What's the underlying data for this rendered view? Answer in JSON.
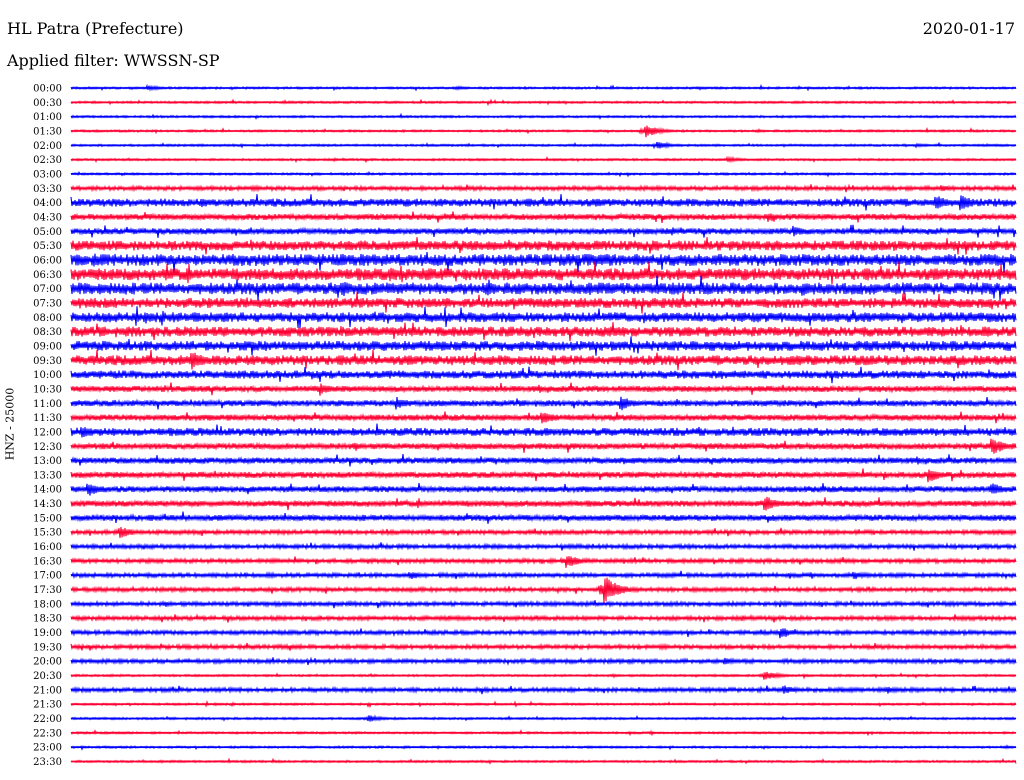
{
  "header": {
    "station": "HL Patra (Prefecture)",
    "date": "2020-01-17",
    "filter": "Applied filter: WWSSN-SP"
  },
  "colors": {
    "even_trace": "#0000ff",
    "odd_trace": "#ff0033"
  },
  "chart_data": {
    "type": "line",
    "title": "HL Patra (Prefecture)",
    "ylabel": "HNZ - 25000",
    "y_tick_labels": [
      "00:00",
      "00:30",
      "01:00",
      "01:30",
      "02:00",
      "02:30",
      "03:00",
      "03:30",
      "04:00",
      "04:30",
      "05:00",
      "05:30",
      "06:00",
      "06:30",
      "07:00",
      "07:30",
      "08:00",
      "08:30",
      "09:00",
      "09:30",
      "10:00",
      "10:30",
      "11:00",
      "11:30",
      "12:00",
      "12:30",
      "13:00",
      "13:30",
      "14:00",
      "14:30",
      "15:00",
      "15:30",
      "16:00",
      "16:30",
      "17:00",
      "17:30",
      "18:00",
      "18:30",
      "19:00",
      "19:30",
      "20:00",
      "20:30",
      "21:00",
      "21:30",
      "22:00",
      "22:30",
      "23:00",
      "23:30"
    ],
    "trace_minutes": 30,
    "grid": false,
    "noise_level": [
      1,
      1,
      1,
      1,
      1,
      1,
      1,
      2,
      4,
      3,
      3,
      5,
      6,
      6,
      6,
      5,
      5,
      5,
      5,
      5,
      4,
      3,
      3,
      3,
      4,
      3,
      3,
      3,
      3,
      3,
      3,
      2,
      2,
      2,
      2,
      2,
      2,
      2,
      2,
      2,
      2,
      1,
      2,
      1,
      1,
      1,
      1,
      1
    ],
    "events": [
      {
        "start": "00:00",
        "minute": 2.4,
        "amp": 3
      },
      {
        "start": "00:00",
        "minute": 12.2,
        "amp": 2
      },
      {
        "start": "01:30",
        "minute": 18.2,
        "amp": 7
      },
      {
        "start": "02:00",
        "minute": 18.6,
        "amp": 4
      },
      {
        "start": "02:00",
        "minute": 26.8,
        "amp": 2
      },
      {
        "start": "02:30",
        "minute": 20.8,
        "amp": 3
      },
      {
        "start": "03:30",
        "minute": 27.6,
        "amp": 4
      },
      {
        "start": "04:00",
        "minute": 4.1,
        "amp": 6
      },
      {
        "start": "04:00",
        "minute": 27.4,
        "amp": 9
      },
      {
        "start": "04:00",
        "minute": 28.2,
        "amp": 9
      },
      {
        "start": "04:30",
        "minute": 22.1,
        "amp": 6
      },
      {
        "start": "05:00",
        "minute": 22.9,
        "amp": 6
      },
      {
        "start": "06:00",
        "minute": 0.7,
        "amp": 8
      },
      {
        "start": "06:30",
        "minute": 10.1,
        "amp": 8
      },
      {
        "start": "07:00",
        "minute": 8.6,
        "amp": 9
      },
      {
        "start": "07:00",
        "minute": 23.2,
        "amp": 8
      },
      {
        "start": "09:30",
        "minute": 3.8,
        "amp": 11
      },
      {
        "start": "10:30",
        "minute": 7.9,
        "amp": 7
      },
      {
        "start": "11:00",
        "minute": 10.3,
        "amp": 7
      },
      {
        "start": "11:00",
        "minute": 17.4,
        "amp": 9
      },
      {
        "start": "11:30",
        "minute": 14.9,
        "amp": 8
      },
      {
        "start": "12:00",
        "minute": 0.3,
        "amp": 7
      },
      {
        "start": "12:30",
        "minute": 29.2,
        "amp": 10
      },
      {
        "start": "13:30",
        "minute": 27.2,
        "amp": 8
      },
      {
        "start": "14:00",
        "minute": 0.5,
        "amp": 8
      },
      {
        "start": "14:00",
        "minute": 29.2,
        "amp": 7
      },
      {
        "start": "14:30",
        "minute": 22.0,
        "amp": 9
      },
      {
        "start": "15:30",
        "minute": 1.5,
        "amp": 7
      },
      {
        "start": "16:30",
        "minute": 15.7,
        "amp": 8
      },
      {
        "start": "17:00",
        "minute": 10.7,
        "amp": 5
      },
      {
        "start": "17:00",
        "minute": 24.8,
        "amp": 5
      },
      {
        "start": "17:30",
        "minute": 16.9,
        "amp": 16
      },
      {
        "start": "19:00",
        "minute": 22.5,
        "amp": 6
      },
      {
        "start": "20:00",
        "minute": 20.7,
        "amp": 4
      },
      {
        "start": "20:30",
        "minute": 22.0,
        "amp": 5
      },
      {
        "start": "21:00",
        "minute": 22.6,
        "amp": 5
      },
      {
        "start": "21:00",
        "minute": 25.9,
        "amp": 4
      },
      {
        "start": "22:00",
        "minute": 9.4,
        "amp": 4
      }
    ]
  }
}
